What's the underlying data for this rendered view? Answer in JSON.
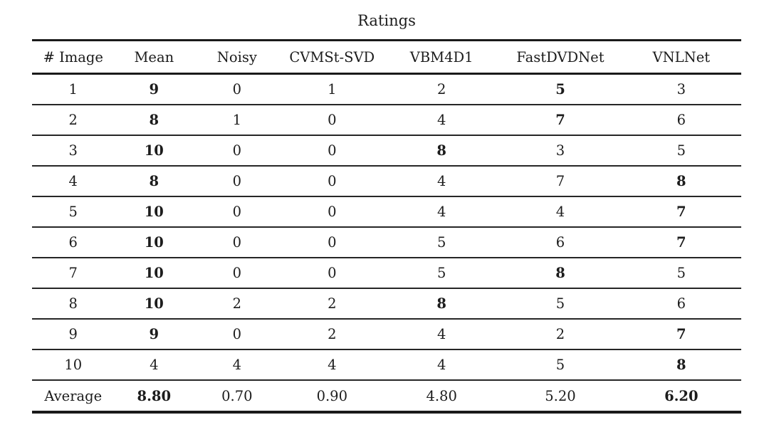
{
  "table": {
    "title": "Ratings",
    "columns": [
      "# Image",
      "Mean",
      "Noisy",
      "CVMSt-SVD",
      "VBM4D1",
      "FastDVDNet",
      "VNLNet"
    ],
    "rows": [
      {
        "values": [
          "1",
          "9",
          "0",
          "1",
          "2",
          "5",
          "3"
        ],
        "bold": [
          1,
          5
        ]
      },
      {
        "values": [
          "2",
          "8",
          "1",
          "0",
          "4",
          "7",
          "6"
        ],
        "bold": [
          1,
          5
        ]
      },
      {
        "values": [
          "3",
          "10",
          "0",
          "0",
          "8",
          "3",
          "5"
        ],
        "bold": [
          1,
          4
        ]
      },
      {
        "values": [
          "4",
          "8",
          "0",
          "0",
          "4",
          "7",
          "8"
        ],
        "bold": [
          1,
          6
        ]
      },
      {
        "values": [
          "5",
          "10",
          "0",
          "0",
          "4",
          "4",
          "7"
        ],
        "bold": [
          1,
          6
        ]
      },
      {
        "values": [
          "6",
          "10",
          "0",
          "0",
          "5",
          "6",
          "7"
        ],
        "bold": [
          1,
          6
        ]
      },
      {
        "values": [
          "7",
          "10",
          "0",
          "0",
          "5",
          "8",
          "5"
        ],
        "bold": [
          1,
          5
        ]
      },
      {
        "values": [
          "8",
          "10",
          "2",
          "2",
          "8",
          "5",
          "6"
        ],
        "bold": [
          1,
          4
        ]
      },
      {
        "values": [
          "9",
          "9",
          "0",
          "2",
          "4",
          "2",
          "7"
        ],
        "bold": [
          1,
          6
        ]
      },
      {
        "values": [
          "10",
          "4",
          "4",
          "4",
          "4",
          "5",
          "8"
        ],
        "bold": [
          6
        ]
      }
    ],
    "average_row": {
      "values": [
        "Average",
        "8.80",
        "0.70",
        "0.90",
        "4.80",
        "5.20",
        "6.20"
      ],
      "bold": [
        1,
        6
      ]
    }
  },
  "colors": {
    "text": "#1c1c1c",
    "rule_thick": "#1a1a1a",
    "rule_thin": "#262626",
    "background": "#ffffff"
  }
}
